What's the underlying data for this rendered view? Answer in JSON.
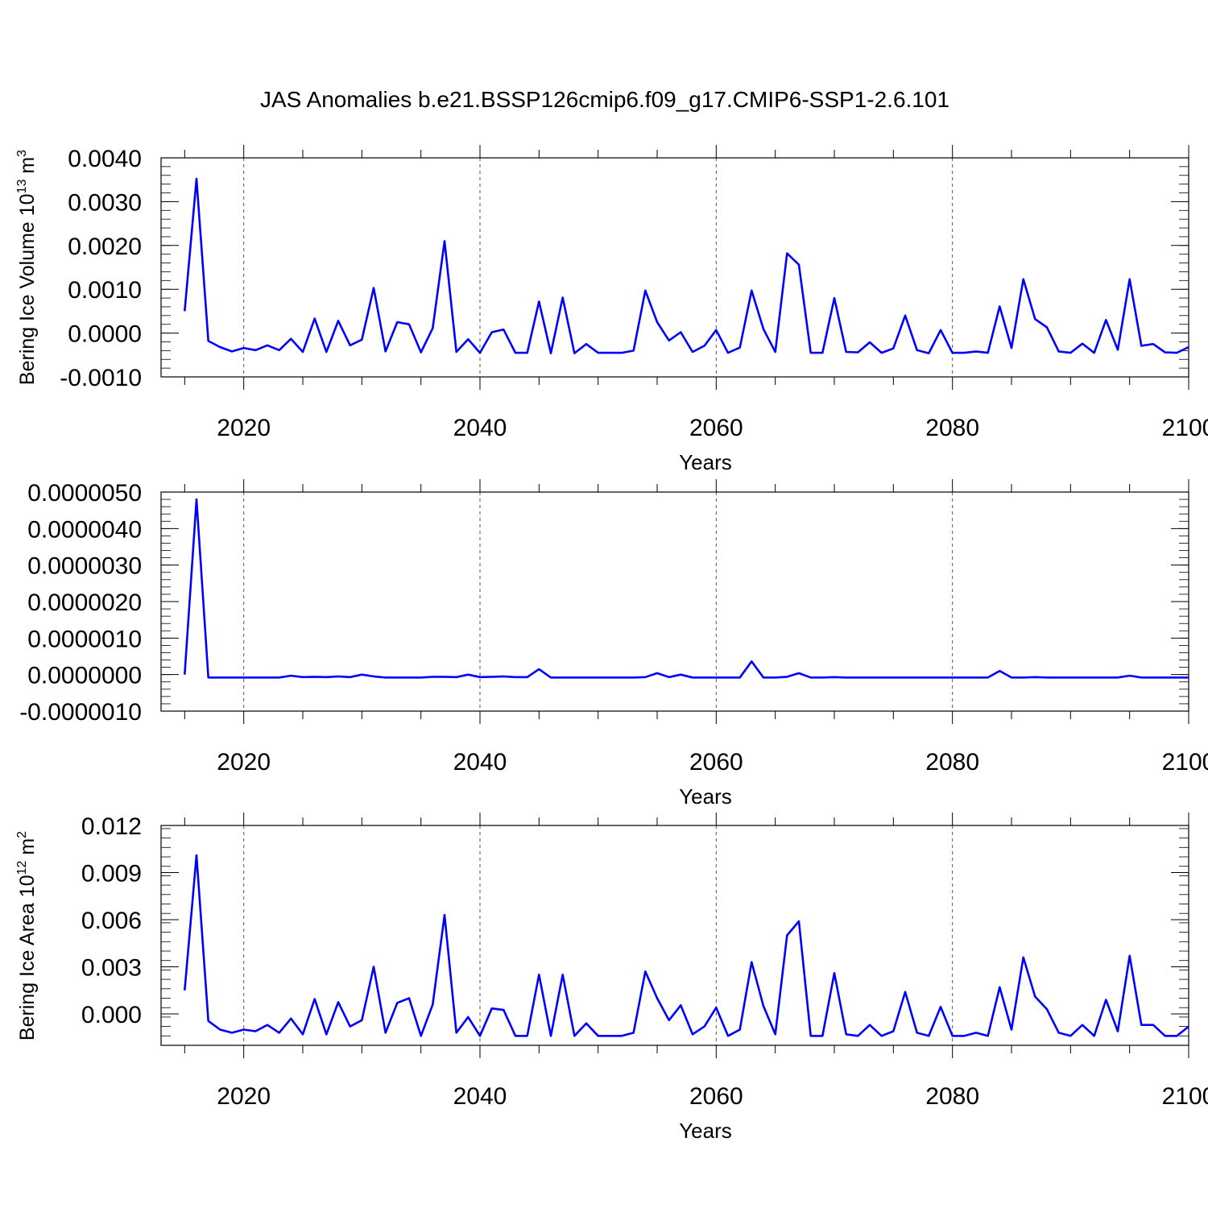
{
  "title": "JAS Anomalies b.e21.BSSP126cmip6.f09_g17.CMIP6-SSP1-2.6.101",
  "line_color": "#0000ff",
  "chart_data": [
    {
      "type": "line",
      "xlabel": "Years",
      "ylabel": "Bering Ice Volume 10",
      "ylabel_sup": "13",
      "ylabel_unit": " m",
      "ylabel_unit_sup": "3",
      "xlim": [
        2013,
        2100
      ],
      "ylim": [
        -0.001,
        0.004
      ],
      "x_ticks": [
        2020,
        2040,
        2060,
        2080,
        2100
      ],
      "x_tick_labels": [
        "2020",
        "2040",
        "2060",
        "2080",
        "2100"
      ],
      "y_ticks": [
        -0.001,
        0.0,
        0.001,
        0.002,
        0.003,
        0.004
      ],
      "y_tick_labels": [
        "-0.0010",
        "0.0000",
        "0.0010",
        "0.0020",
        "0.0030",
        "0.0040"
      ],
      "x_start": 2015,
      "series": [
        {
          "values": [
            0.0005,
            0.00352,
            -0.00018,
            -0.00032,
            -0.00042,
            -0.00034,
            -0.00039,
            -0.00028,
            -0.00039,
            -0.00013,
            -0.00043,
            0.00033,
            -0.00043,
            0.00028,
            -0.00028,
            -0.00015,
            0.00103,
            -0.00042,
            0.00025,
            0.0002,
            -0.00044,
            0.00011,
            0.0021,
            -0.00043,
            -0.00014,
            -0.00045,
            2e-05,
            8e-05,
            -0.00045,
            -0.00045,
            0.00072,
            -0.00046,
            0.00081,
            -0.00046,
            -0.00025,
            -0.00045,
            -0.00045,
            -0.00045,
            -0.0004,
            0.00097,
            0.00025,
            -0.00017,
            2e-05,
            -0.00043,
            -0.00029,
            7e-05,
            -0.00045,
            -0.00033,
            0.00097,
            9e-05,
            -0.00043,
            0.00182,
            0.00156,
            -0.00045,
            -0.00045,
            0.0008,
            -0.00043,
            -0.00044,
            -0.00021,
            -0.00045,
            -0.00035,
            0.0004,
            -0.00039,
            -0.00046,
            7e-05,
            -0.00045,
            -0.00045,
            -0.00042,
            -0.00045,
            0.00061,
            -0.00034,
            0.00123,
            0.00032,
            0.00013,
            -0.00042,
            -0.00045,
            -0.00024,
            -0.00045,
            0.0003,
            -0.00038,
            0.00123,
            -0.00029,
            -0.00025,
            -0.00044,
            -0.00045,
            -0.00032
          ]
        }
      ]
    },
    {
      "type": "line",
      "xlabel": "Years",
      "ylabel": "",
      "xlim": [
        2013,
        2100
      ],
      "ylim": [
        -1e-06,
        5e-06
      ],
      "x_ticks": [
        2020,
        2040,
        2060,
        2080,
        2100
      ],
      "x_tick_labels": [
        "2020",
        "2040",
        "2060",
        "2080",
        "2100"
      ],
      "y_ticks": [
        -1e-06,
        0.0,
        1e-06,
        2e-06,
        3e-06,
        4e-06,
        5e-06
      ],
      "y_tick_labels": [
        "-0.0000010",
        "0.0000000",
        "0.0000010",
        "0.0000020",
        "0.0000030",
        "0.0000040",
        "0.0000050"
      ],
      "x_start": 2015,
      "series": [
        {
          "values": [
            0.0,
            4.8e-06,
            -8e-08,
            -8e-08,
            -8e-08,
            -8e-08,
            -8e-08,
            -8e-08,
            -8e-08,
            -3e-08,
            -7e-08,
            -6e-08,
            -7e-08,
            -5e-08,
            -7e-08,
            0.0,
            -5e-08,
            -8e-08,
            -8e-08,
            -8e-08,
            -8e-08,
            -6e-08,
            -6e-08,
            -7e-08,
            0.0,
            -7e-08,
            -6e-08,
            -5e-08,
            -7e-08,
            -7e-08,
            1.5e-07,
            -8e-08,
            -8e-08,
            -8e-08,
            -8e-08,
            -8e-08,
            -8e-08,
            -8e-08,
            -8e-08,
            -7e-08,
            4e-08,
            -7e-08,
            0.0,
            -8e-08,
            -8e-08,
            -8e-08,
            -8e-08,
            -8e-08,
            3.6e-07,
            -8e-08,
            -8e-08,
            -6e-08,
            4e-08,
            -8e-08,
            -8e-08,
            -7e-08,
            -8e-08,
            -8e-08,
            -8e-08,
            -8e-08,
            -8e-08,
            -8e-08,
            -8e-08,
            -8e-08,
            -8e-08,
            -8e-08,
            -8e-08,
            -8e-08,
            -8e-08,
            1e-07,
            -8e-08,
            -8e-08,
            -7e-08,
            -8e-08,
            -8e-08,
            -8e-08,
            -8e-08,
            -8e-08,
            -8e-08,
            -8e-08,
            -3e-08,
            -8e-08,
            -8e-08,
            -8e-08,
            -8e-08,
            -8e-08
          ]
        }
      ]
    },
    {
      "type": "line",
      "xlabel": "Years",
      "ylabel": "Bering Ice Area 10",
      "ylabel_sup": "12",
      "ylabel_unit": " m",
      "ylabel_unit_sup": "2",
      "xlim": [
        2013,
        2100
      ],
      "ylim": [
        -0.002,
        0.012
      ],
      "x_ticks": [
        2020,
        2040,
        2060,
        2080,
        2100
      ],
      "x_tick_labels": [
        "2020",
        "2040",
        "2060",
        "2080",
        "2100"
      ],
      "y_ticks": [
        0.0,
        0.003,
        0.006,
        0.009,
        0.012
      ],
      "y_tick_labels": [
        "0.000",
        "0.003",
        "0.006",
        "0.009",
        "0.012"
      ],
      "x_start": 2015,
      "series": [
        {
          "values": [
            0.0015,
            0.0101,
            -0.00045,
            -0.001,
            -0.0012,
            -0.001,
            -0.0011,
            -0.0007,
            -0.0012,
            -0.0003,
            -0.0013,
            0.00095,
            -0.0013,
            0.00075,
            -0.0008,
            -0.0004,
            0.003,
            -0.0012,
            0.0007,
            0.001,
            -0.0014,
            0.0006,
            0.0063,
            -0.0012,
            -0.0002,
            -0.0014,
            0.00035,
            0.00025,
            -0.0014,
            -0.0014,
            0.0025,
            -0.0014,
            0.0025,
            -0.0014,
            -0.0006,
            -0.0014,
            -0.0014,
            -0.0014,
            -0.0012,
            0.0027,
            0.001,
            -0.0004,
            0.00055,
            -0.0013,
            -0.0008,
            0.0004,
            -0.0014,
            -0.001,
            0.0033,
            0.0005,
            -0.0013,
            0.005,
            0.0059,
            -0.0014,
            -0.0014,
            0.0026,
            -0.0013,
            -0.0014,
            -0.0007,
            -0.0014,
            -0.0011,
            0.0014,
            -0.0012,
            -0.0014,
            0.00045,
            -0.0014,
            -0.0014,
            -0.0012,
            -0.0014,
            0.0017,
            -0.001,
            0.0036,
            0.0011,
            0.0003,
            -0.0012,
            -0.0014,
            -0.0007,
            -0.0014,
            0.0009,
            -0.0011,
            0.0037,
            -0.0007,
            -0.0007,
            -0.0014,
            -0.0014,
            -0.0008
          ]
        }
      ]
    }
  ]
}
